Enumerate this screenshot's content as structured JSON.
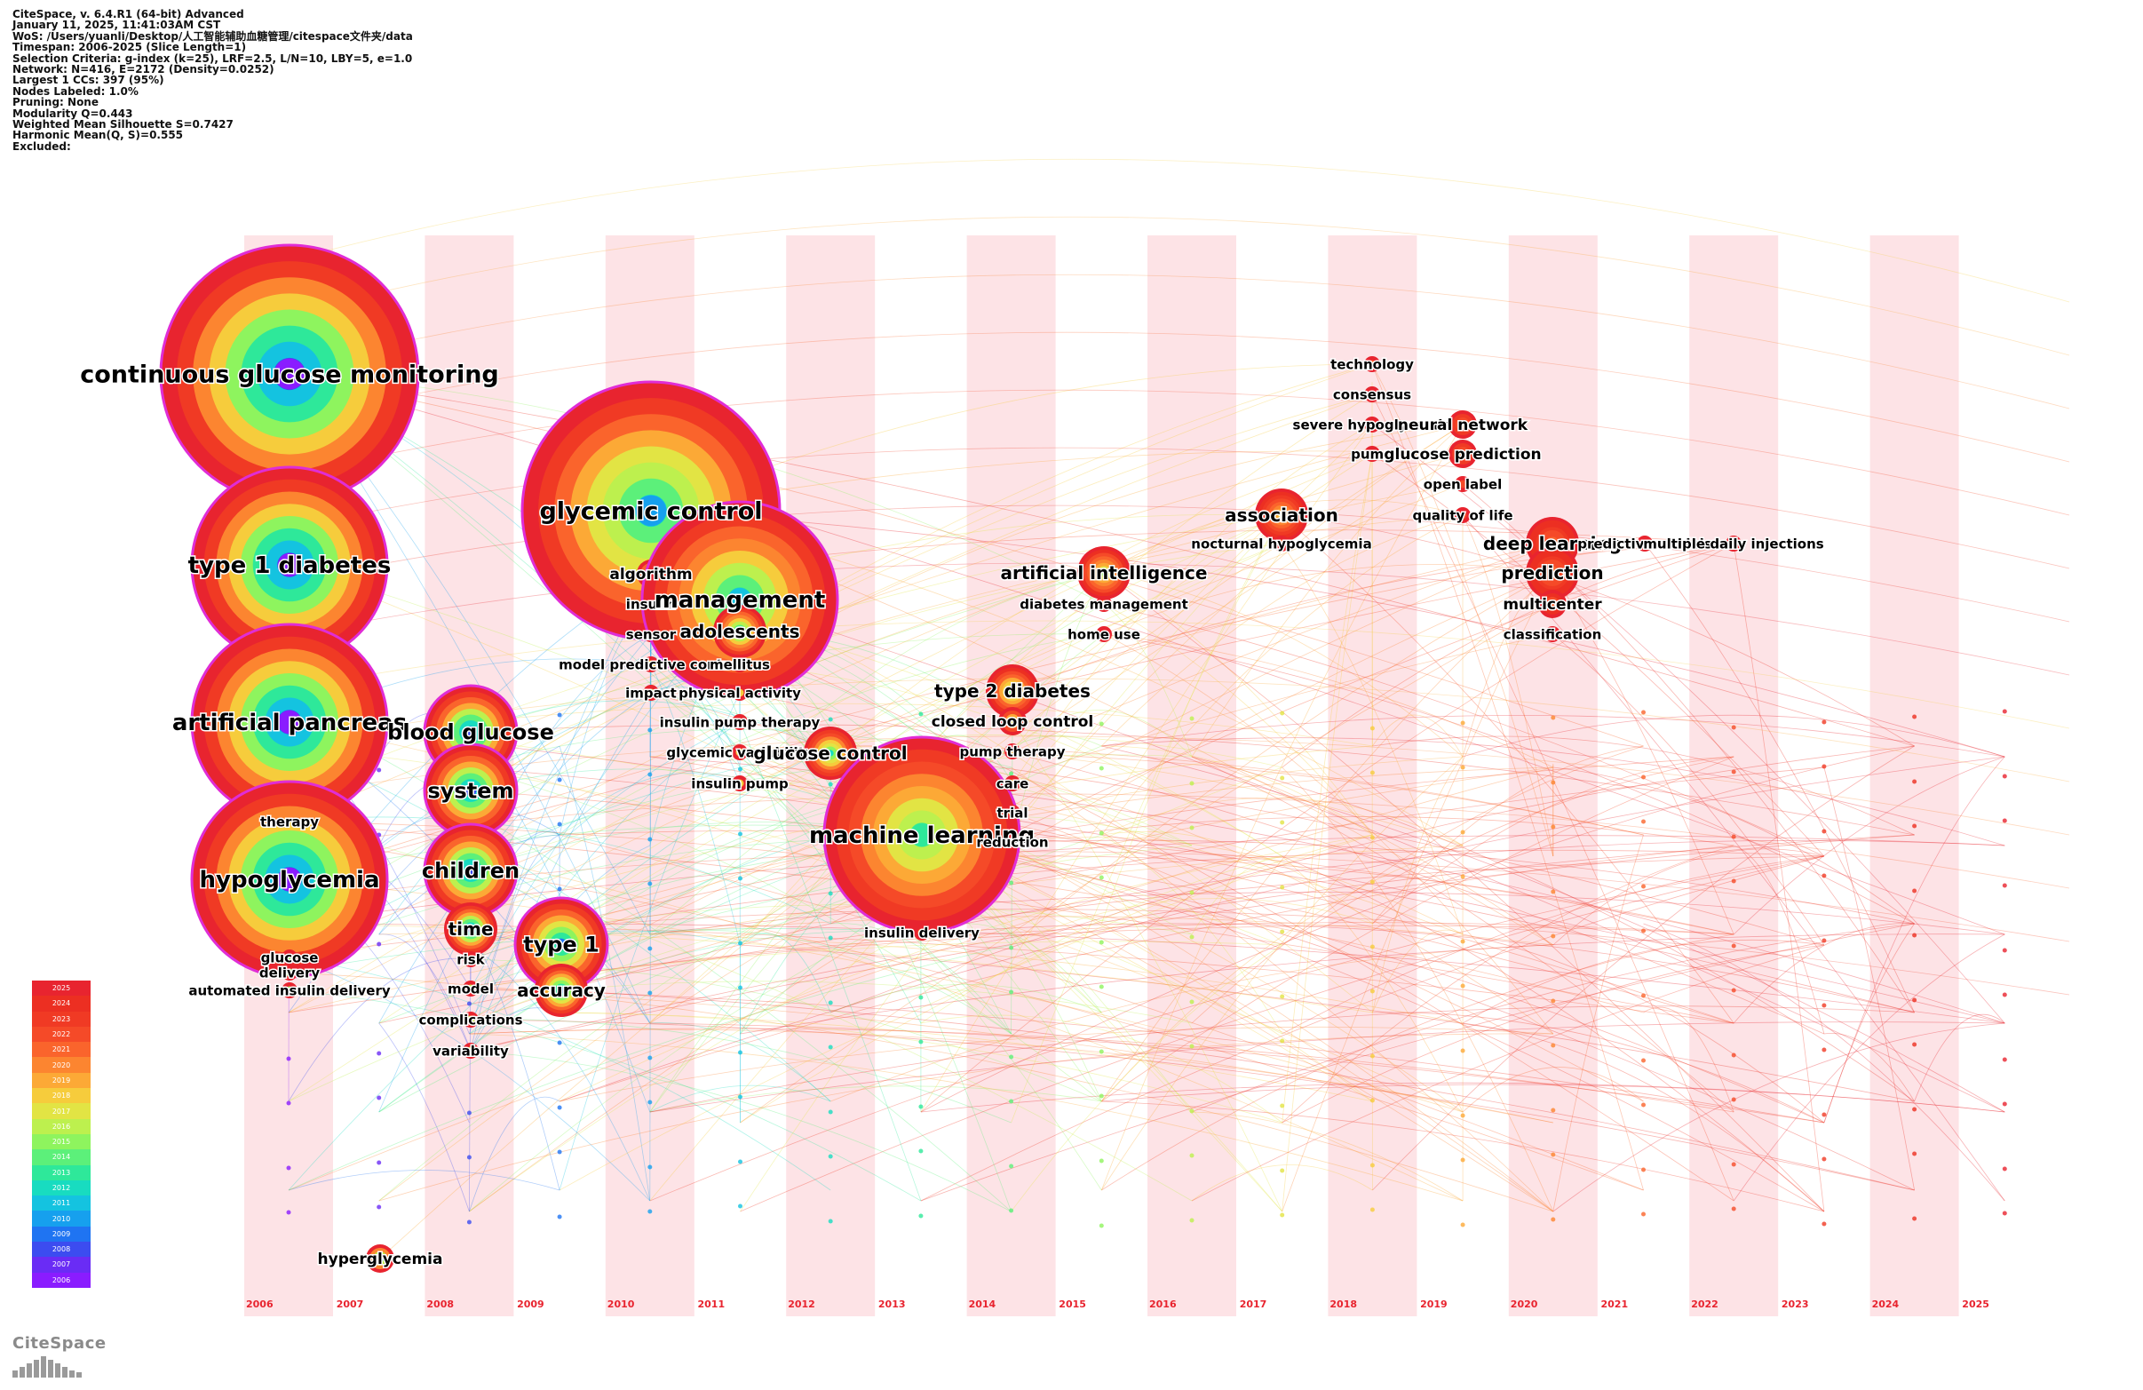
{
  "meta": [
    "CiteSpace, v. 6.4.R1 (64-bit) Advanced",
    "January 11, 2025, 11:41:03AM CST",
    "WoS: /Users/yuanli/Desktop/人工智能辅助血糖管理/citespace文件夹/data",
    "Timespan: 2006-2025 (Slice Length=1)",
    "Selection Criteria: g-index (k=25), LRF=2.5, L/N=10, LBY=5, e=1.0",
    "Network: N=416, E=2172 (Density=0.0252)",
    "Largest 1 CCs: 397 (95%)",
    "Nodes Labeled: 1.0%",
    "Pruning: None",
    "Modularity Q=0.443",
    "Weighted Mean Silhouette S=0.7427",
    "Harmonic Mean(Q, S)=0.555",
    "Excluded:"
  ],
  "years": [
    "2006",
    "2007",
    "2008",
    "2009",
    "2010",
    "2011",
    "2012",
    "2013",
    "2014",
    "2015",
    "2016",
    "2017",
    "2018",
    "2019",
    "2020",
    "2021",
    "2022",
    "2023",
    "2024",
    "2025"
  ],
  "legend_years": [
    "2025",
    "2024",
    "2023",
    "2022",
    "2021",
    "2020",
    "2019",
    "2018",
    "2017",
    "2016",
    "2015",
    "2014",
    "2013",
    "2012",
    "2011",
    "2010",
    "2009",
    "2008",
    "2007",
    "2006"
  ],
  "colors": {
    "stripe": "#fde3e6",
    "year_label": "#e8242f",
    "node_outer": "#f0301e",
    "label": "#000000"
  },
  "nodes": [
    {
      "label": "continuous glucose monitoring",
      "year": "2006",
      "size": 6
    },
    {
      "label": "type 1 diabetes",
      "year": "2006",
      "size": 5
    },
    {
      "label": "artificial pancreas",
      "year": "2006",
      "size": 5
    },
    {
      "label": "therapy",
      "year": "2006",
      "size": 1
    },
    {
      "label": "hypoglycemia",
      "year": "2006",
      "size": 5
    },
    {
      "label": "glucose",
      "year": "2006",
      "size": 1
    },
    {
      "label": "delivery",
      "year": "2006",
      "size": 1
    },
    {
      "label": "automated insulin delivery",
      "year": "2006",
      "size": 1
    },
    {
      "label": "hyperglycemia",
      "year": "2007",
      "size": 2
    },
    {
      "label": "blood glucose",
      "year": "2008",
      "size": 4
    },
    {
      "label": "system",
      "year": "2008",
      "size": 4
    },
    {
      "label": "children",
      "year": "2008",
      "size": 4
    },
    {
      "label": "time",
      "year": "2008",
      "size": 3
    },
    {
      "label": "risk",
      "year": "2008",
      "size": 1
    },
    {
      "label": "model",
      "year": "2008",
      "size": 1
    },
    {
      "label": "complications",
      "year": "2008",
      "size": 1
    },
    {
      "label": "variability",
      "year": "2008",
      "size": 1
    },
    {
      "label": "type 1",
      "year": "2009",
      "size": 4
    },
    {
      "label": "accuracy",
      "year": "2009",
      "size": 3
    },
    {
      "label": "glycemic control",
      "year": "2010",
      "size": 6
    },
    {
      "label": "algorithm",
      "year": "2010",
      "size": 2
    },
    {
      "label": "insulin",
      "year": "2010",
      "size": 1
    },
    {
      "label": "sensor",
      "year": "2010",
      "size": 1
    },
    {
      "label": "model predictive control",
      "year": "2010",
      "size": 1
    },
    {
      "label": "impact",
      "year": "2010",
      "size": 1
    },
    {
      "label": "management",
      "year": "2011",
      "size": 5
    },
    {
      "label": "adolescents",
      "year": "2011",
      "size": 3
    },
    {
      "label": "mellitus",
      "year": "2011",
      "size": 1
    },
    {
      "label": "physical activity",
      "year": "2011",
      "size": 1
    },
    {
      "label": "insulin pump therapy",
      "year": "2011",
      "size": 1
    },
    {
      "label": "glycemic variability",
      "year": "2011",
      "size": 1
    },
    {
      "label": "insulin pump",
      "year": "2011",
      "size": 1
    },
    {
      "label": "glucose control",
      "year": "2012",
      "size": 3
    },
    {
      "label": "machine learning",
      "year": "2013",
      "size": 5
    },
    {
      "label": "insulin delivery",
      "year": "2013",
      "size": 1
    },
    {
      "label": "type 2 diabetes",
      "year": "2014",
      "size": 3
    },
    {
      "label": "closed loop control",
      "year": "2014",
      "size": 2
    },
    {
      "label": "pump therapy",
      "year": "2014",
      "size": 1
    },
    {
      "label": "care",
      "year": "2014",
      "size": 1
    },
    {
      "label": "trial",
      "year": "2014",
      "size": 1
    },
    {
      "label": "reduction",
      "year": "2014",
      "size": 1
    },
    {
      "label": "artificial intelligence",
      "year": "2015",
      "size": 3
    },
    {
      "label": "diabetes management",
      "year": "2015",
      "size": 1
    },
    {
      "label": "home use",
      "year": "2015",
      "size": 1
    },
    {
      "label": "association",
      "year": "2017",
      "size": 3
    },
    {
      "label": "nocturnal hypoglycemia",
      "year": "2017",
      "size": 1
    },
    {
      "label": "technology",
      "year": "2018",
      "size": 1
    },
    {
      "label": "consensus",
      "year": "2018",
      "size": 1
    },
    {
      "label": "severe hypoglycemia",
      "year": "2018",
      "size": 1
    },
    {
      "label": "pump",
      "year": "2018",
      "size": 1
    },
    {
      "label": "neural network",
      "year": "2019",
      "size": 2
    },
    {
      "label": "glucose prediction",
      "year": "2019",
      "size": 2
    },
    {
      "label": "open label",
      "year": "2019",
      "size": 1
    },
    {
      "label": "quality of life",
      "year": "2019",
      "size": 1
    },
    {
      "label": "deep learning",
      "year": "2020",
      "size": 3
    },
    {
      "label": "prediction",
      "year": "2020",
      "size": 3
    },
    {
      "label": "multicenter",
      "year": "2020",
      "size": 2
    },
    {
      "label": "classification",
      "year": "2020",
      "size": 1
    },
    {
      "label": "predictive models",
      "year": "2021",
      "size": 1
    },
    {
      "label": "multiple daily injections",
      "year": "2022",
      "size": 1
    }
  ]
}
